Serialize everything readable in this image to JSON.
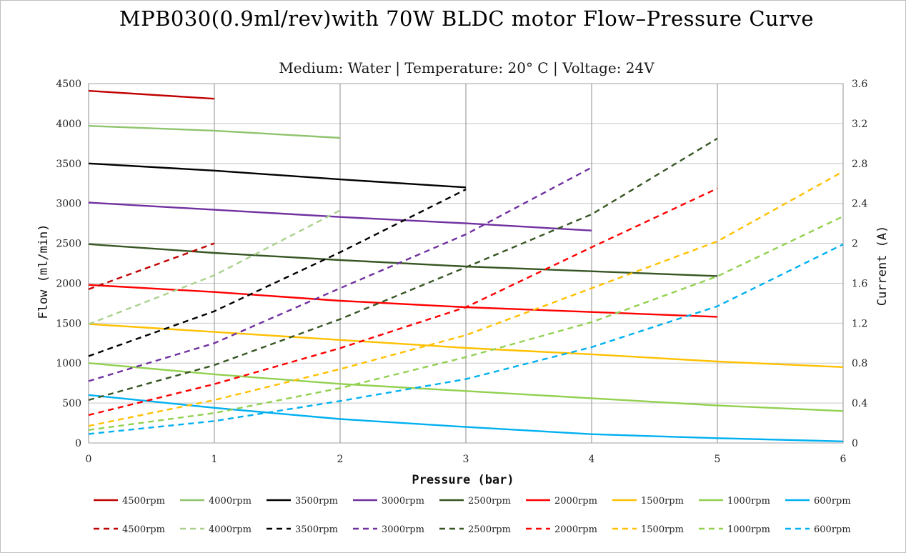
{
  "chart_data": {
    "type": "line",
    "title": "MPB030(0.9ml/rev)with 70W BLDC motor Flow–Pressure Curve",
    "subtitle": "Medium: Water | Temperature: 20° C | Voltage: 24V",
    "xlabel": "Pressure (bar)",
    "ylabel": "Flow (ml/min)",
    "y2label": "Current (A)",
    "xlim": [
      0,
      6
    ],
    "ylim": [
      0,
      4500
    ],
    "y2lim": [
      0,
      3.6
    ],
    "xticks": [
      "0",
      "1",
      "2",
      "3",
      "4",
      "5",
      "6"
    ],
    "yticks": [
      "0",
      "500",
      "1000",
      "1500",
      "2000",
      "2500",
      "3000",
      "3500",
      "4000",
      "4500"
    ],
    "y2ticks": [
      "0",
      "0.4",
      "0.8",
      "1.2",
      "1.6",
      "2",
      "2.4",
      "2.8",
      "3.2",
      "3.6"
    ],
    "grid": true,
    "legend_position": "bottom",
    "series": [
      {
        "name": "4500rpm",
        "axis": "flow",
        "style": "solid",
        "color": "#c00000",
        "x": [
          0,
          1
        ],
        "y": [
          4410,
          4310
        ]
      },
      {
        "name": "4000rpm",
        "axis": "flow",
        "style": "solid",
        "color": "#8fc46e",
        "x": [
          0,
          1,
          2
        ],
        "y": [
          3970,
          3910,
          3820
        ]
      },
      {
        "name": "3500rpm",
        "axis": "flow",
        "style": "solid",
        "color": "#000000",
        "x": [
          0,
          1,
          2,
          3
        ],
        "y": [
          3500,
          3410,
          3300,
          3200
        ]
      },
      {
        "name": "3000rpm",
        "axis": "flow",
        "style": "solid",
        "color": "#7030a0",
        "x": [
          0,
          1,
          2,
          3,
          4
        ],
        "y": [
          3010,
          2920,
          2830,
          2750,
          2660
        ]
      },
      {
        "name": "2500rpm",
        "axis": "flow",
        "style": "solid",
        "color": "#375623",
        "x": [
          0,
          1,
          2,
          3,
          4,
          5
        ],
        "y": [
          2490,
          2380,
          2290,
          2210,
          2150,
          2090
        ]
      },
      {
        "name": "2000rpm",
        "axis": "flow",
        "style": "solid",
        "color": "#ff0000",
        "x": [
          0,
          1,
          2,
          3,
          4,
          5
        ],
        "y": [
          1980,
          1890,
          1780,
          1700,
          1640,
          1580
        ]
      },
      {
        "name": "1500rpm",
        "axis": "flow",
        "style": "solid",
        "color": "#ffc000",
        "x": [
          0,
          1,
          2,
          3,
          4,
          5,
          6
        ],
        "y": [
          1490,
          1390,
          1290,
          1190,
          1110,
          1020,
          950
        ]
      },
      {
        "name": "1000rpm",
        "axis": "flow",
        "style": "solid",
        "color": "#92d050",
        "x": [
          0,
          1,
          2,
          3,
          4,
          5,
          6
        ],
        "y": [
          1000,
          860,
          740,
          650,
          560,
          470,
          400
        ]
      },
      {
        "name": "600rpm",
        "axis": "flow",
        "style": "solid",
        "color": "#00b0f0",
        "x": [
          0,
          1,
          2,
          3,
          4,
          5,
          6
        ],
        "y": [
          600,
          440,
          300,
          200,
          110,
          60,
          20
        ]
      },
      {
        "name": "4500rpm",
        "axis": "current",
        "style": "dashed",
        "color": "#c00000",
        "x": [
          0,
          1
        ],
        "y": [
          1.54,
          2.0
        ]
      },
      {
        "name": "4000rpm",
        "axis": "current",
        "style": "dashed",
        "color": "#a9d18e",
        "x": [
          0,
          1,
          2
        ],
        "y": [
          1.19,
          1.68,
          2.33
        ]
      },
      {
        "name": "3500rpm",
        "axis": "current",
        "style": "dashed",
        "color": "#000000",
        "x": [
          0,
          1,
          2,
          3
        ],
        "y": [
          0.87,
          1.32,
          1.91,
          2.54
        ]
      },
      {
        "name": "3000rpm",
        "axis": "current",
        "style": "dashed",
        "color": "#7030a0",
        "x": [
          0,
          1,
          2,
          3,
          4
        ],
        "y": [
          0.62,
          1.0,
          1.55,
          2.09,
          2.76
        ]
      },
      {
        "name": "2500rpm",
        "axis": "current",
        "style": "dashed",
        "color": "#375623",
        "x": [
          0,
          1,
          2,
          3,
          4,
          5
        ],
        "y": [
          0.43,
          0.78,
          1.24,
          1.76,
          2.29,
          3.05
        ]
      },
      {
        "name": "2000rpm",
        "axis": "current",
        "style": "dashed",
        "color": "#ff0000",
        "x": [
          0,
          1,
          2,
          3,
          4,
          5
        ],
        "y": [
          0.28,
          0.59,
          0.95,
          1.36,
          1.96,
          2.55
        ]
      },
      {
        "name": "1500rpm",
        "axis": "current",
        "style": "dashed",
        "color": "#ffc000",
        "x": [
          0,
          1,
          2,
          3,
          4,
          5,
          6
        ],
        "y": [
          0.17,
          0.43,
          0.74,
          1.08,
          1.55,
          2.02,
          2.72
        ]
      },
      {
        "name": "1000rpm",
        "axis": "current",
        "style": "dashed",
        "color": "#92d050",
        "x": [
          0,
          1,
          2,
          3,
          4,
          5,
          6
        ],
        "y": [
          0.13,
          0.3,
          0.55,
          0.86,
          1.21,
          1.67,
          2.27
        ]
      },
      {
        "name": "600rpm",
        "axis": "current",
        "style": "dashed",
        "color": "#00b0f0",
        "x": [
          0,
          1,
          2,
          3,
          4,
          5,
          6
        ],
        "y": [
          0.09,
          0.22,
          0.42,
          0.64,
          0.96,
          1.37,
          1.99
        ]
      }
    ]
  }
}
